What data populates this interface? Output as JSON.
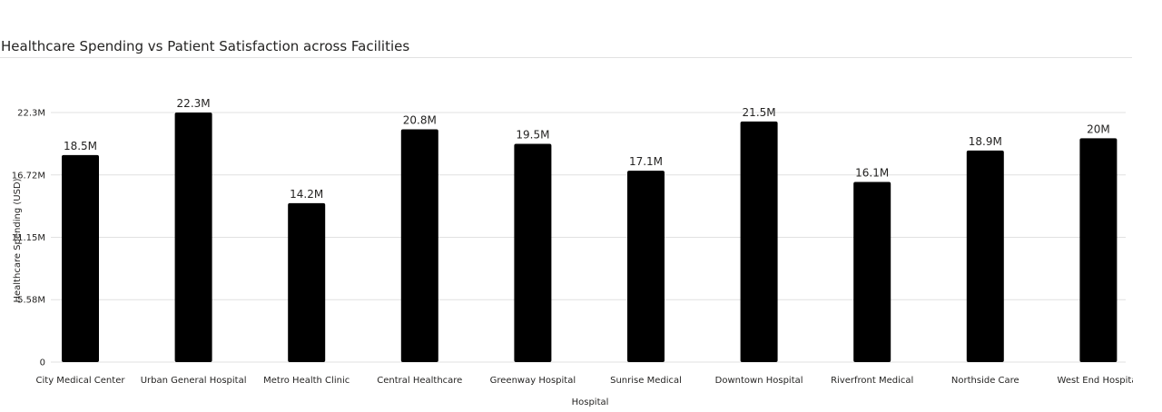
{
  "chart_data": {
    "type": "bar",
    "title": "Healthcare Spending vs Patient Satisfaction across Facilities",
    "xlabel": "Hospital",
    "ylabel": "Healthcare Spending (USD)",
    "ylim": [
      0,
      22300000
    ],
    "grid": true,
    "legend": "none",
    "y_ticks": [
      {
        "value": 0,
        "label": "0"
      },
      {
        "value": 5580000,
        "label": "5.58M"
      },
      {
        "value": 11150000,
        "label": "11.15M"
      },
      {
        "value": 16720000,
        "label": "16.72M"
      },
      {
        "value": 22300000,
        "label": "22.3M"
      }
    ],
    "categories": [
      "City Medical Center",
      "Urban General Hospital",
      "Metro Health Clinic",
      "Central Healthcare",
      "Greenway Hospital",
      "Sunrise Medical",
      "Downtown Hospital",
      "Riverfront Medical",
      "Northside Care",
      "West End Hospital"
    ],
    "values": [
      18500000,
      22300000,
      14200000,
      20800000,
      19500000,
      17100000,
      21500000,
      16100000,
      18900000,
      20000000
    ],
    "data_labels": [
      "18.5M",
      "22.3M",
      "14.2M",
      "20.8M",
      "19.5M",
      "17.1M",
      "21.5M",
      "16.1M",
      "18.9M",
      "20M"
    ],
    "bar_color": "#000000",
    "grid_color": "#e1e1e1"
  }
}
